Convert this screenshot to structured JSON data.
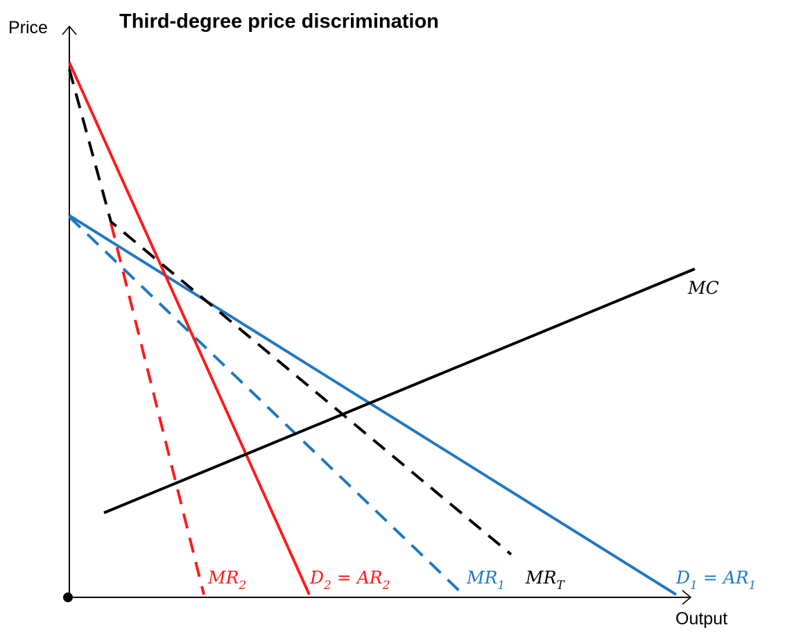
{
  "title": "Third-degree price discrimination",
  "axes": {
    "y_label": "Price",
    "x_label": "Output"
  },
  "curves": {
    "mc": {
      "label": "MC",
      "color": "#000000",
      "style": "solid"
    },
    "d1": {
      "label_main": "D",
      "label_sub": "1",
      "label_eq": " = ",
      "label_main2": "AR",
      "label_sub2": "1",
      "color": "#1f78c1",
      "style": "solid"
    },
    "mr1": {
      "label_main": "MR",
      "label_sub": "1",
      "color": "#1f78c1",
      "style": "dashed"
    },
    "d2": {
      "label_main": "D",
      "label_sub": "2",
      "label_eq": " = ",
      "label_main2": "AR",
      "label_sub2": "2",
      "color": "#ff1a1a",
      "style": "solid"
    },
    "mr2": {
      "label_main": "MR",
      "label_sub": "2",
      "color": "#ff1a1a",
      "style": "dashed"
    },
    "mrt": {
      "label_main": "MR",
      "label_sub": "T",
      "color": "#000000",
      "style": "dashed"
    }
  }
}
